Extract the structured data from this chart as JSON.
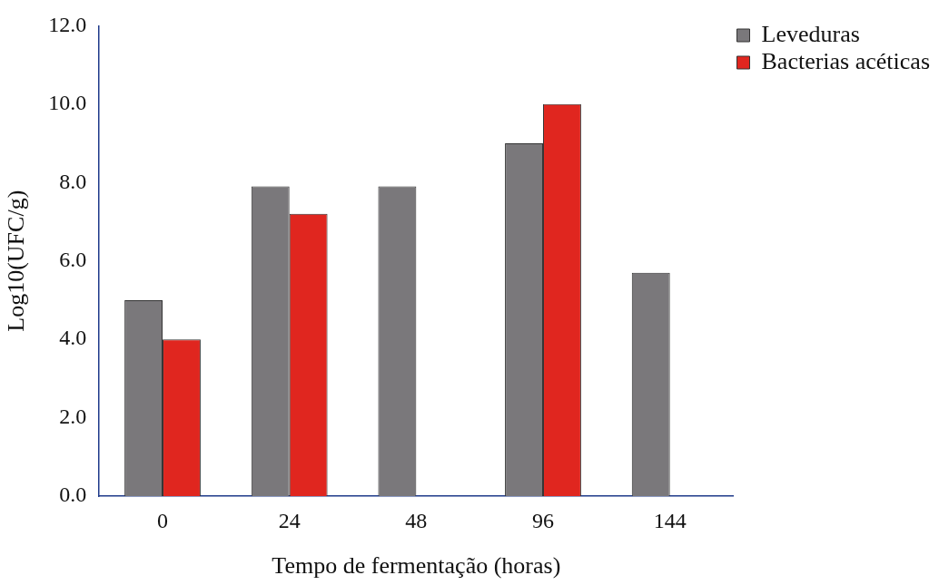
{
  "chart_data": {
    "type": "bar",
    "xlabel": "Tempo de fermentação (horas)",
    "ylabel": "Log10(UFC/g)",
    "categories": [
      "0",
      "24",
      "48",
      "96",
      "144"
    ],
    "series": [
      {
        "name": "Leveduras",
        "color": "#7a787b",
        "values": [
          5.0,
          7.9,
          7.9,
          9.0,
          5.7
        ]
      },
      {
        "name": "Bacterias acéticas",
        "color": "#e0261f",
        "values": [
          4.0,
          7.2,
          null,
          10.0,
          null
        ]
      }
    ],
    "ylim": [
      0,
      12
    ],
    "yticks": [
      {
        "value": 0,
        "label": "0.0"
      },
      {
        "value": 2,
        "label": "2.0"
      },
      {
        "value": 4,
        "label": "4.0"
      },
      {
        "value": 6,
        "label": "6.0"
      },
      {
        "value": 8,
        "label": "8.0"
      },
      {
        "value": 10,
        "label": "10.0"
      },
      {
        "value": 12,
        "label": "12.0"
      }
    ],
    "grid": false,
    "legend": "top right"
  }
}
